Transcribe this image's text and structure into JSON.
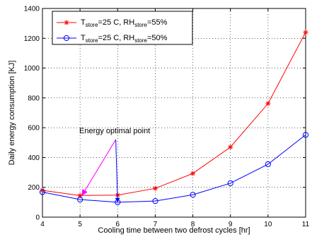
{
  "chart_data": {
    "type": "line",
    "xlabel": "Cooling time between two defrost cycles [hr]",
    "ylabel": "Daily energy consumption [KJ]",
    "xlim": [
      4,
      11
    ],
    "ylim": [
      0,
      1400
    ],
    "xticks": [
      4,
      5,
      6,
      7,
      8,
      9,
      10,
      11
    ],
    "yticks": [
      0,
      200,
      400,
      600,
      800,
      1000,
      1200,
      1400
    ],
    "grid": true,
    "legend_position": "top-left",
    "series": [
      {
        "name": "T_store=25 C, RH_store=55%",
        "legend_text": [
          {
            "t": "T",
            "sub": false
          },
          {
            "t": "store",
            "sub": true
          },
          {
            "t": "=25 C, RH",
            "sub": false
          },
          {
            "t": "store",
            "sub": true
          },
          {
            "t": "=55%",
            "sub": false
          }
        ],
        "color": "#ff0000",
        "marker": "star",
        "x": [
          4,
          5,
          6,
          7,
          8,
          9,
          10,
          11
        ],
        "y": [
          180,
          145,
          148,
          193,
          293,
          470,
          762,
          1240
        ]
      },
      {
        "name": "T_store=25 C, RH_store=50%",
        "legend_text": [
          {
            "t": "T",
            "sub": false
          },
          {
            "t": "store",
            "sub": true
          },
          {
            "t": "=25 C, RH",
            "sub": false
          },
          {
            "t": "store",
            "sub": true
          },
          {
            "t": "=50%",
            "sub": false
          }
        ],
        "color": "#0000ff",
        "marker": "circle",
        "x": [
          4,
          5,
          6,
          7,
          8,
          9,
          10,
          11
        ],
        "y": [
          168,
          118,
          100,
          108,
          150,
          228,
          355,
          552
        ]
      }
    ],
    "annotations": [
      {
        "text": "Energy optimal point",
        "arrow_color": "#ff00ff",
        "arrow_from": [
          5.95,
          520
        ],
        "arrow_to": [
          5.05,
          145
        ],
        "blue_line_to": [
          6.0,
          100
        ]
      }
    ]
  }
}
